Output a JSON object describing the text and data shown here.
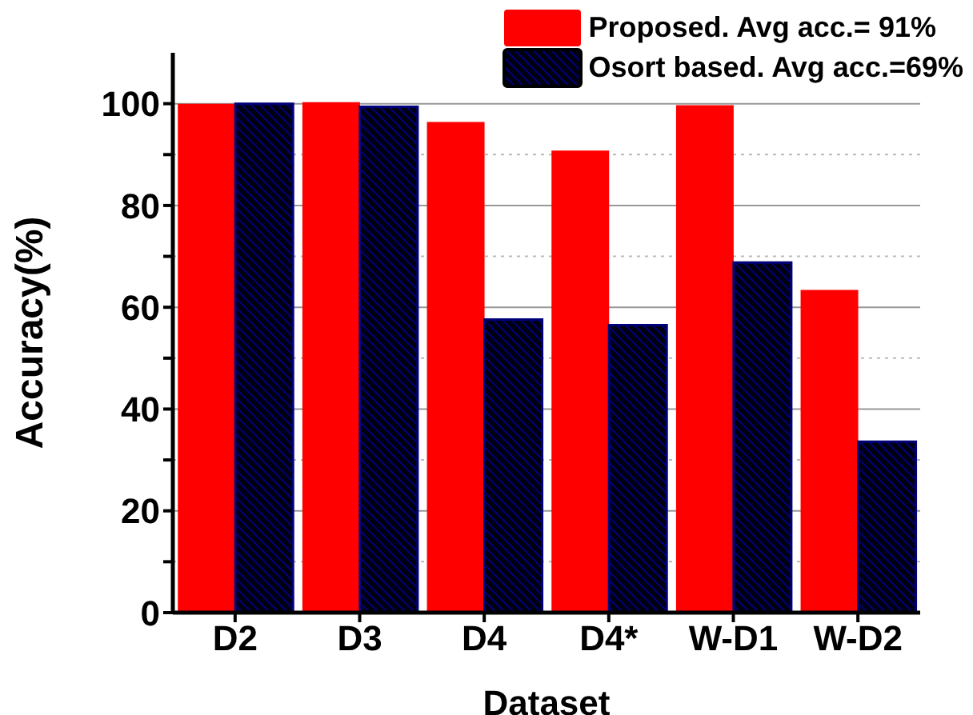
{
  "chart_data": {
    "type": "bar",
    "xlabel": "Dataset",
    "ylabel": "Accuracy(%)",
    "categories": [
      "D2",
      "D3",
      "D4",
      "D4*",
      "W-D1",
      "W-D2"
    ],
    "series": [
      {
        "name": "Proposed. Avg acc.= 91%",
        "color": "#ff0000",
        "values": [
          100,
          100.3,
          96.4,
          90.8,
          99.7,
          63.4
        ]
      },
      {
        "name": "Osort based. Avg acc.=69%",
        "color": "#00007a",
        "values": [
          100,
          99.4,
          57.6,
          56.5,
          68.8,
          33.6
        ]
      }
    ],
    "ylim": [
      0,
      110
    ],
    "yticks": [
      0,
      {
        "value": 10,
        "label": null
      },
      20,
      {
        "value": 30,
        "label": null
      },
      40,
      {
        "value": 50,
        "label": null
      },
      60,
      {
        "value": 70,
        "label": null
      },
      80,
      {
        "value": 90,
        "label": null
      },
      100
    ],
    "grid": "y",
    "legend": "top right"
  }
}
